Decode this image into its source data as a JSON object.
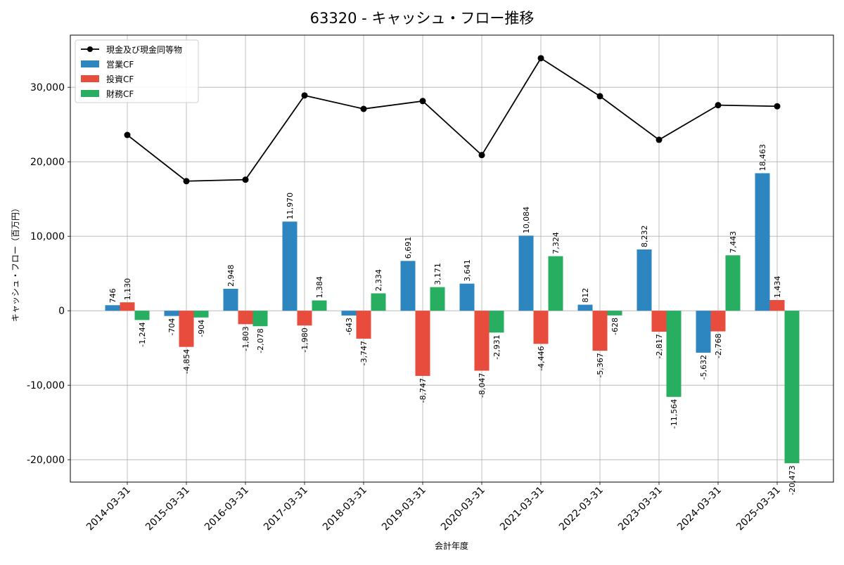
{
  "chart_data": {
    "type": "bar",
    "title": "63320 - キャッシュ・フロー推移",
    "xlabel": "会計年度",
    "ylabel": "キャッシュ・フロー（百万円）",
    "ylim": [
      -23000,
      37000
    ],
    "yticks": [
      -20000,
      -10000,
      0,
      10000,
      20000,
      30000
    ],
    "ytick_labels": [
      "-20,000",
      "-10,000",
      "0",
      "10,000",
      "20,000",
      "30,000"
    ],
    "grid": true,
    "legend_position": "top-left",
    "categories": [
      "2014-03-31",
      "2015-03-31",
      "2016-03-31",
      "2017-03-31",
      "2018-03-31",
      "2019-03-31",
      "2020-03-31",
      "2021-03-31",
      "2022-03-31",
      "2023-03-31",
      "2024-03-31",
      "2025-03-31"
    ],
    "series": [
      {
        "name": "営業CF",
        "kind": "bar",
        "color": "#2e86c1",
        "values": [
          746,
          -704,
          2948,
          11970,
          -643,
          6691,
          3641,
          10084,
          812,
          8232,
          -5632,
          18463
        ],
        "labels": [
          "746",
          "-704",
          "2,948",
          "11,970",
          "-643",
          "6,691",
          "3,641",
          "10,084",
          "812",
          "8,232",
          "-5,632",
          "18,463"
        ]
      },
      {
        "name": "投資CF",
        "kind": "bar",
        "color": "#e74c3c",
        "values": [
          1130,
          -4854,
          -1803,
          -1980,
          -3747,
          -8747,
          -8047,
          -4446,
          -5367,
          -2817,
          -2768,
          1434
        ],
        "labels": [
          "1,130",
          "-4,854",
          "-1,803",
          "-1,980",
          "-3,747",
          "-8,747",
          "-8,047",
          "-4,446",
          "-5,367",
          "-2,817",
          "-2,768",
          "1,434"
        ]
      },
      {
        "name": "財務CF",
        "kind": "bar",
        "color": "#27ae60",
        "values": [
          -1244,
          -904,
          -2078,
          1384,
          2334,
          3171,
          -2931,
          7324,
          -628,
          -11564,
          7443,
          -20473
        ],
        "labels": [
          "-1,244",
          "-904",
          "-2,078",
          "1,384",
          "2,334",
          "3,171",
          "-2,931",
          "7,324",
          "-628",
          "-11,564",
          "7,443",
          "-20,473"
        ]
      },
      {
        "name": "現金及び現金同等物",
        "kind": "line",
        "color": "#000000",
        "values": [
          23600,
          17400,
          17600,
          28900,
          27100,
          28150,
          20900,
          33900,
          28800,
          22950,
          27600,
          27450
        ]
      }
    ]
  }
}
